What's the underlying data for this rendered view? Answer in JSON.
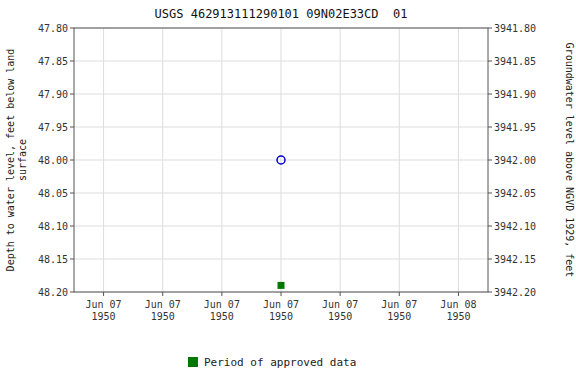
{
  "chart_data": {
    "type": "scatter",
    "title": "USGS 462913111290101 09N02E33CD  01",
    "ylabel": "Depth to water level, feet below land\nsurface",
    "y2label": "Groundwater level above NGVD 1929, feet",
    "categories": [
      "Jun 07\n1950",
      "Jun 07\n1950",
      "Jun 07\n1950",
      "Jun 07\n1950",
      "Jun 07\n1950",
      "Jun 07\n1950",
      "Jun 08\n1950"
    ],
    "ylim": [
      48.2,
      47.8
    ],
    "yticks": [
      {
        "value": 47.8,
        "label": "47.80"
      },
      47.85,
      {
        "value": 47.9,
        "label": "47.90"
      },
      47.95,
      {
        "value": 48.0,
        "label": "48.00"
      },
      48.05,
      {
        "value": 48.1,
        "label": "48.10"
      },
      48.15,
      {
        "value": 48.2,
        "label": "48.20"
      }
    ],
    "y2lim": [
      3942.2,
      3941.8
    ],
    "y2ticks": [
      {
        "value": 3942.2,
        "label": "3942.20"
      },
      3942.15,
      {
        "value": 3942.1,
        "label": "3942.10"
      },
      3942.05,
      {
        "value": 3942.0,
        "label": "3942.00"
      },
      3941.95,
      {
        "value": 3941.9,
        "label": "3941.90"
      },
      3941.85,
      {
        "value": 3941.8,
        "label": "3941.80"
      }
    ],
    "series": [
      {
        "color": "#0000cc",
        "marker": "open-circle",
        "values": [
          null,
          null,
          null,
          48.0,
          null,
          null,
          null
        ]
      },
      {
        "name": "Period of approved data",
        "color": "#007700",
        "marker": "square",
        "values": [
          null,
          null,
          null,
          48.19,
          null,
          null,
          null
        ]
      }
    ],
    "grid": true,
    "legend": "bottom"
  }
}
